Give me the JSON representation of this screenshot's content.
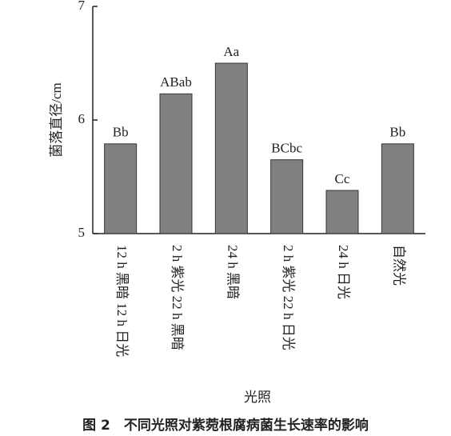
{
  "chart_data": {
    "type": "bar",
    "title": "图 2　不同光照对紫菀根腐病菌生长速率的影响",
    "x_label": "光照",
    "y_label": "菌落直径/cm",
    "categories": [
      "12 h 黑暗 12 h 日光",
      "2 h 紫光 22 h 黑暗",
      "24 h 黑暗",
      "2 h 紫光 22 h 日光",
      "24 h 日光",
      "自然光"
    ],
    "values": [
      5.79,
      6.23,
      6.5,
      5.65,
      5.38,
      5.79
    ],
    "annotations": [
      "Bb",
      "ABab",
      "Aa",
      "BCbc",
      "Cc",
      "Bb"
    ],
    "color": "#808080",
    "ylim": [
      5,
      7
    ],
    "yticks": [
      5,
      6,
      7
    ]
  }
}
